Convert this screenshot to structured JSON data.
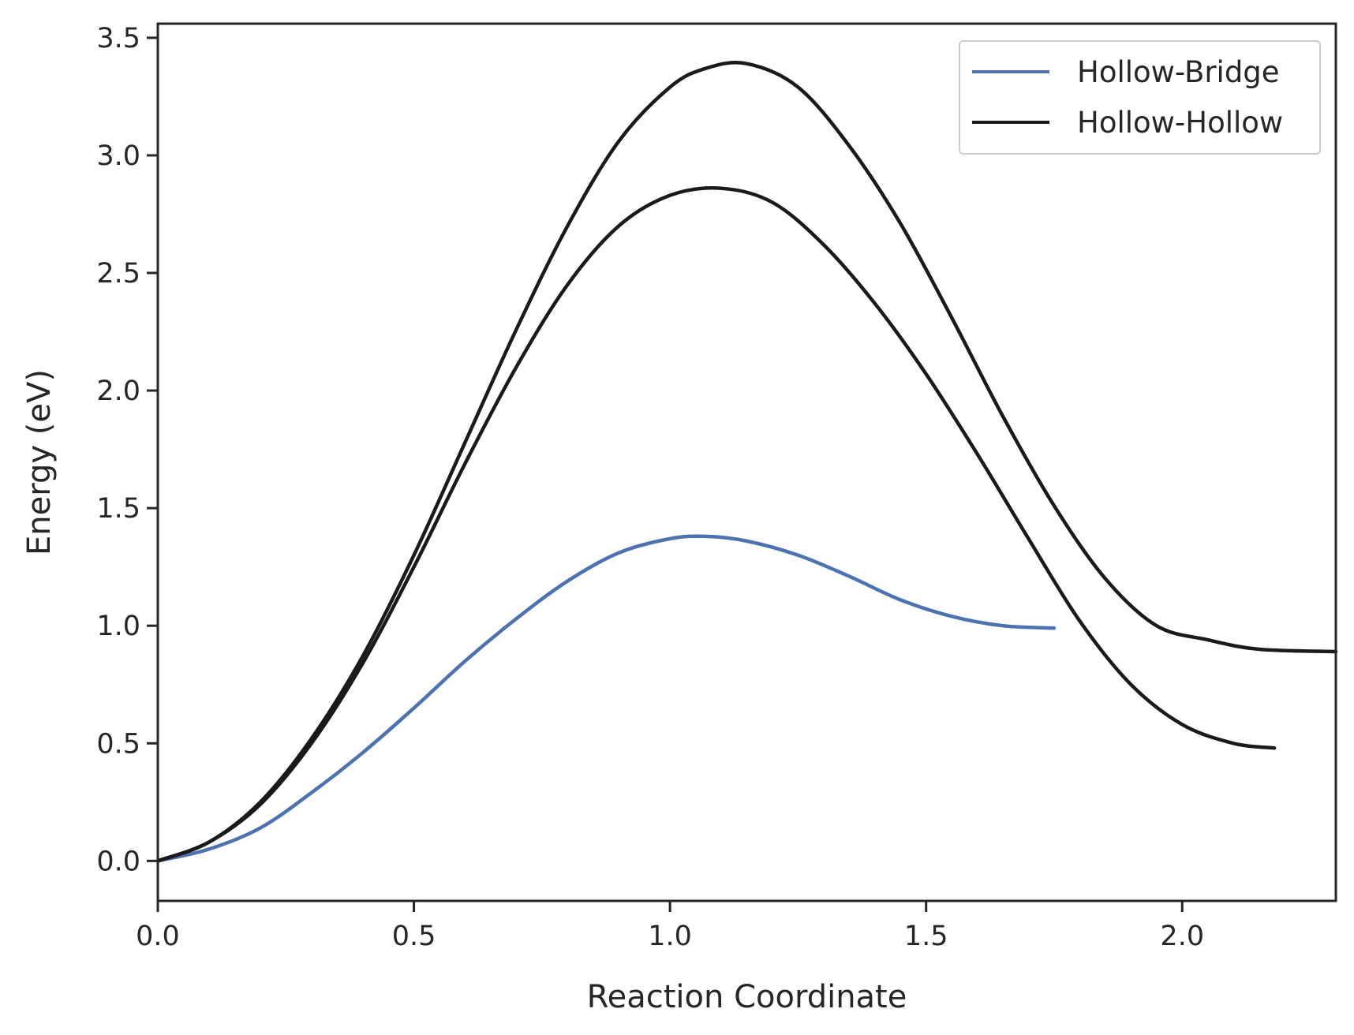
{
  "chart_data": {
    "type": "line",
    "title": "",
    "xlabel": "Reaction Coordinate",
    "ylabel": "Energy (eV)",
    "xlim": [
      0.0,
      2.3
    ],
    "ylim": [
      -0.17,
      3.56
    ],
    "xticks": [
      0.0,
      0.5,
      1.0,
      1.5,
      2.0
    ],
    "xtick_labels": [
      "0.0",
      "0.5",
      "1.0",
      "1.5",
      "2.0"
    ],
    "yticks": [
      0.0,
      0.5,
      1.0,
      1.5,
      2.0,
      2.5,
      3.0,
      3.5
    ],
    "ytick_labels": [
      "0.0",
      "0.5",
      "1.0",
      "1.5",
      "2.0",
      "2.5",
      "3.0",
      "3.5"
    ],
    "grid": false,
    "legend": {
      "position": "top-right",
      "entries": [
        {
          "label": "Hollow-Bridge",
          "color": "#4c72b0"
        },
        {
          "label": "Hollow-Hollow",
          "color": "#1a1a1a"
        }
      ]
    },
    "series": [
      {
        "name": "Hollow-Bridge",
        "color": "#4c72b0",
        "x": [
          0.0,
          0.1,
          0.2,
          0.3,
          0.4,
          0.5,
          0.6,
          0.7,
          0.8,
          0.9,
          1.0,
          1.07,
          1.15,
          1.25,
          1.35,
          1.45,
          1.55,
          1.65,
          1.75
        ],
        "y": [
          0.0,
          0.05,
          0.14,
          0.29,
          0.46,
          0.65,
          0.85,
          1.03,
          1.19,
          1.31,
          1.37,
          1.38,
          1.36,
          1.3,
          1.21,
          1.11,
          1.04,
          1.0,
          0.99
        ]
      },
      {
        "name": "",
        "color": "#1a1a1a",
        "x": [
          0.0,
          0.1,
          0.2,
          0.3,
          0.4,
          0.5,
          0.6,
          0.7,
          0.8,
          0.9,
          1.0,
          1.1,
          1.2,
          1.3,
          1.4,
          1.5,
          1.6,
          1.7,
          1.8,
          1.9,
          2.0,
          2.1,
          2.18
        ],
        "y": [
          0.0,
          0.08,
          0.24,
          0.5,
          0.84,
          1.25,
          1.69,
          2.1,
          2.45,
          2.7,
          2.83,
          2.86,
          2.8,
          2.62,
          2.37,
          2.07,
          1.73,
          1.37,
          1.02,
          0.75,
          0.58,
          0.5,
          0.48
        ]
      },
      {
        "name": "Hollow-Hollow",
        "color": "#1a1a1a",
        "x": [
          0.0,
          0.1,
          0.2,
          0.3,
          0.4,
          0.5,
          0.6,
          0.7,
          0.8,
          0.9,
          1.0,
          1.07,
          1.15,
          1.25,
          1.35,
          1.45,
          1.55,
          1.65,
          1.75,
          1.85,
          1.95,
          2.05,
          2.15,
          2.3
        ],
        "y": [
          0.0,
          0.08,
          0.25,
          0.52,
          0.87,
          1.3,
          1.78,
          2.26,
          2.7,
          3.06,
          3.29,
          3.37,
          3.39,
          3.29,
          3.04,
          2.71,
          2.31,
          1.89,
          1.51,
          1.2,
          1.0,
          0.94,
          0.9,
          0.89
        ]
      }
    ]
  }
}
